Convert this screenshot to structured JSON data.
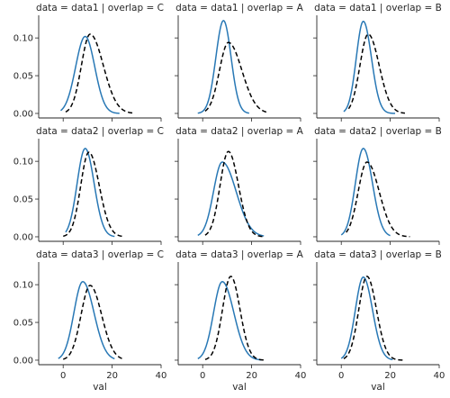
{
  "chart_data": {
    "type": "line",
    "subtitle_template": "data = {data} | overlap = {overlap}",
    "rows": [
      "data1",
      "data2",
      "data3"
    ],
    "cols": [
      "C",
      "A",
      "B"
    ],
    "xlabel": "val",
    "ylabel": "",
    "xlim": [
      -10,
      40
    ],
    "ylim": [
      -0.006,
      0.13
    ],
    "xticks": [
      0,
      20,
      40
    ],
    "yticks": [
      0.0,
      0.05,
      0.1
    ],
    "ytick_labels": [
      "0.00",
      "0.05",
      "0.10"
    ],
    "grid": false,
    "legend": "none",
    "colors": {
      "solid": "#2878b5",
      "dashed": "#000000"
    },
    "panels": [
      {
        "data": "data1",
        "overlap": "C",
        "solid": {
          "mean": 9.0,
          "sd": 3.9,
          "skew": 0.0,
          "peak": 0.102,
          "xmin": -1,
          "xmax": 23
        },
        "dashed": {
          "mean": 11.0,
          "sd": 4.1,
          "skew": 0.9,
          "peak": 0.105,
          "xmin": 1,
          "xmax": 29
        }
      },
      {
        "data": "data1",
        "overlap": "A",
        "solid": {
          "mean": 8.5,
          "sd": 3.1,
          "skew": 0.0,
          "peak": 0.123,
          "xmin": -2,
          "xmax": 19
        },
        "dashed": {
          "mean": 10.5,
          "sd": 4.2,
          "skew": 0.9,
          "peak": 0.094,
          "xmin": 1,
          "xmax": 27
        }
      },
      {
        "data": "data1",
        "overlap": "B",
        "solid": {
          "mean": 9.0,
          "sd": 3.0,
          "skew": 0.3,
          "peak": 0.122,
          "xmin": 1,
          "xmax": 22
        },
        "dashed": {
          "mean": 11.0,
          "sd": 3.7,
          "skew": 0.6,
          "peak": 0.105,
          "xmin": 3,
          "xmax": 26
        }
      },
      {
        "data": "data2",
        "overlap": "C",
        "solid": {
          "mean": 9.0,
          "sd": 3.4,
          "skew": 0.2,
          "peak": 0.117,
          "xmin": 1,
          "xmax": 21
        },
        "dashed": {
          "mean": 10.5,
          "sd": 3.6,
          "skew": 0.5,
          "peak": 0.112,
          "xmin": 0,
          "xmax": 24
        }
      },
      {
        "data": "data2",
        "overlap": "A",
        "solid": {
          "mean": 8.0,
          "sd": 4.2,
          "skew": 1.0,
          "peak": 0.099,
          "xmin": -2,
          "xmax": 25
        },
        "dashed": {
          "mean": 10.5,
          "sd": 3.6,
          "skew": 0.4,
          "peak": 0.113,
          "xmin": 1,
          "xmax": 25
        }
      },
      {
        "data": "data2",
        "overlap": "B",
        "solid": {
          "mean": 9.0,
          "sd": 3.4,
          "skew": 0.3,
          "peak": 0.117,
          "xmin": 0,
          "xmax": 20
        },
        "dashed": {
          "mean": 10.5,
          "sd": 4.0,
          "skew": 0.7,
          "peak": 0.099,
          "xmin": 2,
          "xmax": 28
        }
      },
      {
        "data": "data3",
        "overlap": "C",
        "solid": {
          "mean": 8.0,
          "sd": 3.9,
          "skew": 0.5,
          "peak": 0.104,
          "xmin": -2,
          "xmax": 21
        },
        "dashed": {
          "mean": 11.0,
          "sd": 4.0,
          "skew": 0.5,
          "peak": 0.099,
          "xmin": 0,
          "xmax": 25
        }
      },
      {
        "data": "data3",
        "overlap": "A",
        "solid": {
          "mean": 8.0,
          "sd": 3.9,
          "skew": 0.6,
          "peak": 0.104,
          "xmin": -2,
          "xmax": 24
        },
        "dashed": {
          "mean": 11.5,
          "sd": 3.5,
          "skew": 0.2,
          "peak": 0.111,
          "xmin": 1,
          "xmax": 25
        }
      },
      {
        "data": "data3",
        "overlap": "B",
        "solid": {
          "mean": 9.0,
          "sd": 3.4,
          "skew": 0.3,
          "peak": 0.11,
          "xmin": 0,
          "xmax": 21
        },
        "dashed": {
          "mean": 10.5,
          "sd": 3.5,
          "skew": 0.3,
          "peak": 0.111,
          "xmin": 1,
          "xmax": 26
        }
      }
    ]
  }
}
